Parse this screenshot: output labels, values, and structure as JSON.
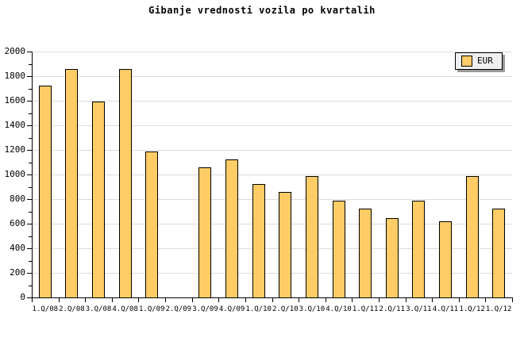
{
  "title": "Gibanje vrednosti vozila po kvartalih",
  "legend": {
    "label": "EUR",
    "position": "top-right"
  },
  "chart_data": {
    "type": "bar",
    "title": "Gibanje vrednosti vozila po kvartalih",
    "categories": [
      "1.Q/08",
      "2.Q/08",
      "3.Q/08",
      "4.Q/08",
      "1.Q/09",
      "2.Q/09",
      "3.Q/09",
      "4.Q/09",
      "1.Q/10",
      "2.Q/10",
      "3.Q/10",
      "4.Q/10",
      "1.Q/11",
      "2.Q/11",
      "3.Q/11",
      "4.Q/11",
      "1.Q/12",
      "1.Q/12"
    ],
    "series": [
      {
        "name": "EUR",
        "values": [
          1725,
          1855,
          1595,
          1855,
          1190,
          null,
          1060,
          1120,
          925,
          860,
          990,
          790,
          725,
          645,
          790,
          620,
          990,
          725
        ]
      }
    ],
    "xlabel": "",
    "ylabel": "",
    "ylim": [
      0,
      2000
    ],
    "ytick_step": 200,
    "ytick_minor_step": 100,
    "grid": "horizontal",
    "legend_position": "top-right",
    "colors": {
      "bar_fill": "#ffcc66",
      "bar_border": "#000000",
      "gridline": "#dcdcdc",
      "axis": "#000000",
      "background": "#ffffff",
      "legend_bg": "#efefef",
      "legend_shadow": "#999999",
      "text": "#000000"
    }
  }
}
